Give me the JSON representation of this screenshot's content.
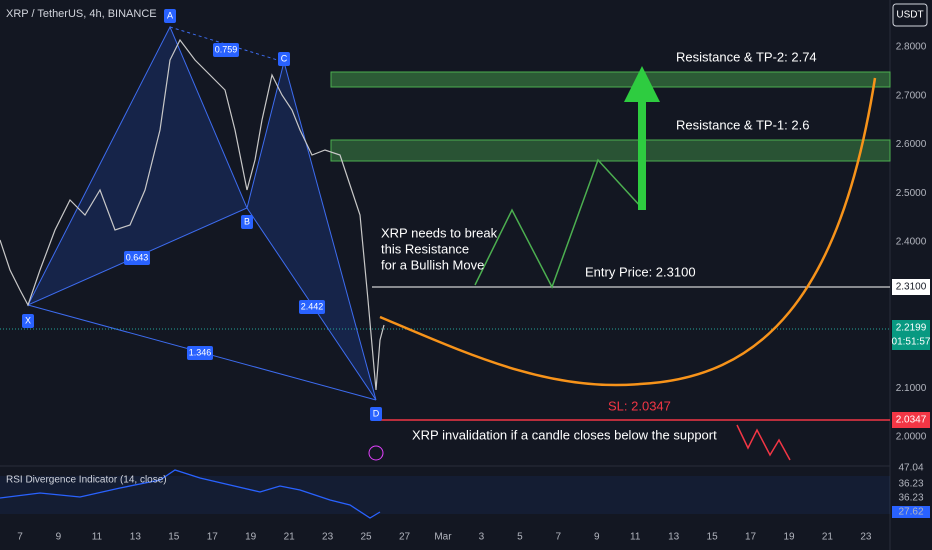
{
  "header": {
    "title": "XRP / TetherUS, 4h, BINANCE",
    "currency": "USDT"
  },
  "price_axis": [
    "2.8000",
    "2.7000",
    "2.6000",
    "2.5000",
    "2.4000",
    "2.1000",
    "2.0000"
  ],
  "price_labels": {
    "entry": "2.3100",
    "last": "2.2199",
    "countdown": "01:51:57",
    "stop": "2.0347"
  },
  "time_axis": [
    "7",
    "9",
    "11",
    "13",
    "15",
    "17",
    "19",
    "21",
    "23",
    "25",
    "27",
    "Mar",
    "3",
    "5",
    "7",
    "9",
    "11",
    "13",
    "15",
    "17",
    "19",
    "21",
    "23"
  ],
  "pattern": {
    "points": [
      "X",
      "A",
      "B",
      "C",
      "D"
    ],
    "ratios": [
      "0.759",
      "0.643",
      "2.442",
      "1.346"
    ]
  },
  "annotations": {
    "tp2": "Resistance & TP-2: 2.74",
    "tp1": "Resistance & TP-1: 2.6",
    "break": [
      "XRP needs to break",
      "this Resistance",
      "for a Bullish Move"
    ],
    "entry": "Entry Price: 2.3100",
    "sl": "SL: 2.0347",
    "invalidation": "XRP invalidation if a candle closes below the support"
  },
  "rsi": {
    "title": "RSI Divergence Indicator (14, close)",
    "levels": [
      "47.04",
      "36.23",
      "36.23",
      "27.62"
    ]
  }
}
